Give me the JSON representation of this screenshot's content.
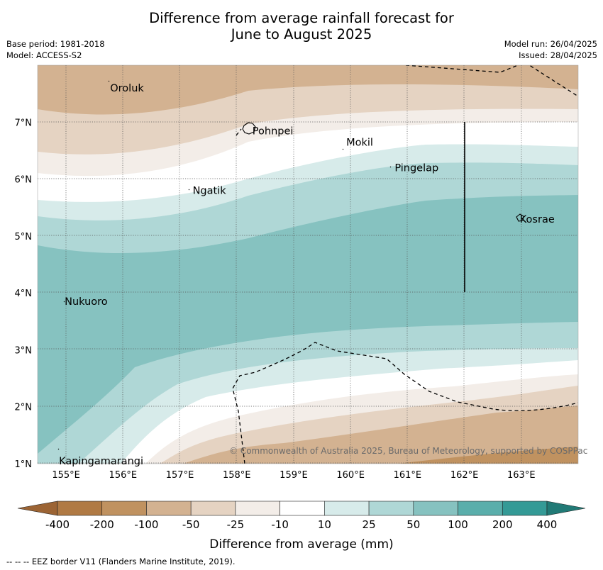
{
  "title": {
    "line1": "Difference from average rainfall forecast for",
    "line2": "June to August 2025"
  },
  "meta": {
    "base_period": "Base period: 1981-2018",
    "model": "Model: ACCESS-S2",
    "model_run": "Model run: 26/04/2025",
    "issued": "Issued: 28/04/2025"
  },
  "map": {
    "lon_range": [
      154.5,
      164.0
    ],
    "lat_range": [
      1.0,
      8.0
    ],
    "lon_ticks": [
      155,
      156,
      157,
      158,
      159,
      160,
      161,
      162,
      163
    ],
    "lon_tick_labels": [
      "155°E",
      "156°E",
      "157°E",
      "158°E",
      "159°E",
      "160°E",
      "161°E",
      "162°E",
      "163°E"
    ],
    "lat_ticks": [
      1,
      2,
      3,
      4,
      5,
      6,
      7
    ],
    "lat_tick_labels": [
      "1°N",
      "2°N",
      "3°N",
      "4°N",
      "5°N",
      "6°N",
      "7°N"
    ],
    "places": [
      {
        "name": "Oroluk",
        "lon": 155.75,
        "lat": 7.6
      },
      {
        "name": "Pohnpei",
        "lon": 158.25,
        "lat": 6.85
      },
      {
        "name": "Mokil",
        "lon": 159.9,
        "lat": 6.65
      },
      {
        "name": "Pingelap",
        "lon": 160.75,
        "lat": 6.2
      },
      {
        "name": "Ngatik",
        "lon": 157.2,
        "lat": 5.8
      },
      {
        "name": "Kosrae",
        "lon": 162.95,
        "lat": 5.3
      },
      {
        "name": "Nukuoro",
        "lon": 154.95,
        "lat": 3.85
      },
      {
        "name": "Kapingamarangi",
        "lon": 154.85,
        "lat": 1.05
      }
    ],
    "copyright": "© Commonwealth of Australia 2025, Bureau of Meteorology, supported by COSPPac",
    "band_colors": [
      "#b07a44",
      "#c09260",
      "#d3b291",
      "#e5d3c2",
      "#f3ede8",
      "#ffffff",
      "#d7ebea",
      "#afd7d6",
      "#86c2c0",
      "#5aaeab",
      "#349a96"
    ]
  },
  "colorbar": {
    "labels": [
      "-400",
      "-200",
      "-100",
      "-50",
      "-25",
      "-10",
      "10",
      "25",
      "50",
      "100",
      "200",
      "400"
    ],
    "title": "Difference from average (mm)"
  },
  "footer": "--  --  -- EEZ border V11 (Flanders Marine Institute, 2019)."
}
